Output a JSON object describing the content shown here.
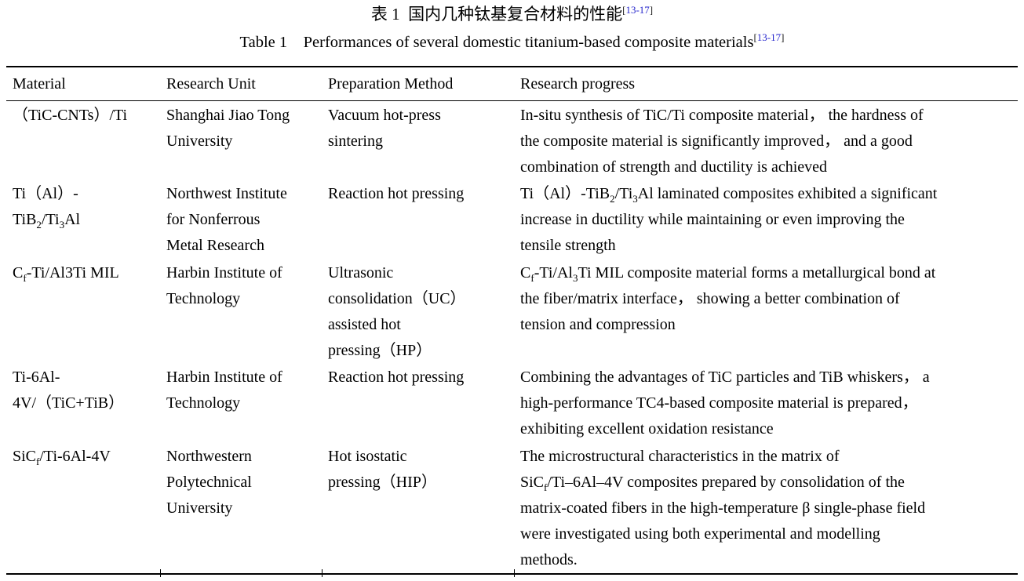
{
  "titles": {
    "cn": "表 1  国内几种钛基复合材料的性能",
    "en": "Table 1    Performances of several domestic titanium-based composite materials",
    "citation": "13-17",
    "bracket_open": "[",
    "bracket_close": "]"
  },
  "colors": {
    "text": "#000000",
    "citation_link": "#2424cc",
    "rule": "#000000",
    "background": "#ffffff"
  },
  "table": {
    "headers": [
      "Material",
      "Research Unit",
      "Preparation Method",
      "Research progress"
    ],
    "rows": [
      {
        "material": "（TiC-CNTs）/Ti",
        "unit": "Shanghai Jiao Tong\nUniversity",
        "method": "Vacuum hot-press\nsintering",
        "progress": "In-situ synthesis of TiC/Ti composite material， the hardness of\nthe composite material is significantly improved， and a good\ncombination of strength and ductility is achieved"
      },
      {
        "material": "Ti（Al）-\nTiB~2~/Ti~3~Al",
        "unit": "Northwest Institute\nfor Nonferrous\nMetal Research",
        "method": "Reaction hot pressing",
        "progress": "Ti（Al）-TiB~2~/Ti~3~Al laminated composites exhibited a significant\nincrease in ductility while maintaining or even improving the\ntensile strength"
      },
      {
        "material": "C~f~-Ti/Al3Ti MIL",
        "unit": "Harbin Institute of\nTechnology",
        "method": "Ultrasonic\nconsolidation（UC）\nassisted hot\npressing（HP）",
        "progress": "C~f~-Ti/Al~3~Ti MIL composite material forms a metallurgical bond at\nthe fiber/matrix interface， showing a better combination of\ntension and compression"
      },
      {
        "material": "Ti-6Al-\n4V/（TiC+TiB）",
        "unit": "Harbin Institute of\nTechnology",
        "method": "Reaction hot pressing",
        "progress": "Combining the advantages of TiC particles and TiB whiskers， a\nhigh-performance TC4-based composite material is prepared，\nexhibiting excellent oxidation resistance"
      },
      {
        "material": "SiC~f~/Ti-6Al-4V",
        "unit": "Northwestern\nPolytechnical\nUniversity",
        "method": "Hot isostatic\npressing（HIP）",
        "progress": "The microstructural characteristics in the matrix of\nSiC~f~/Ti–6Al–4V composites prepared by consolidation of the\nmatrix-coated fibers in the high-temperature β single-phase field\nwere investigated using both experimental and modelling\nmethods."
      }
    ]
  }
}
